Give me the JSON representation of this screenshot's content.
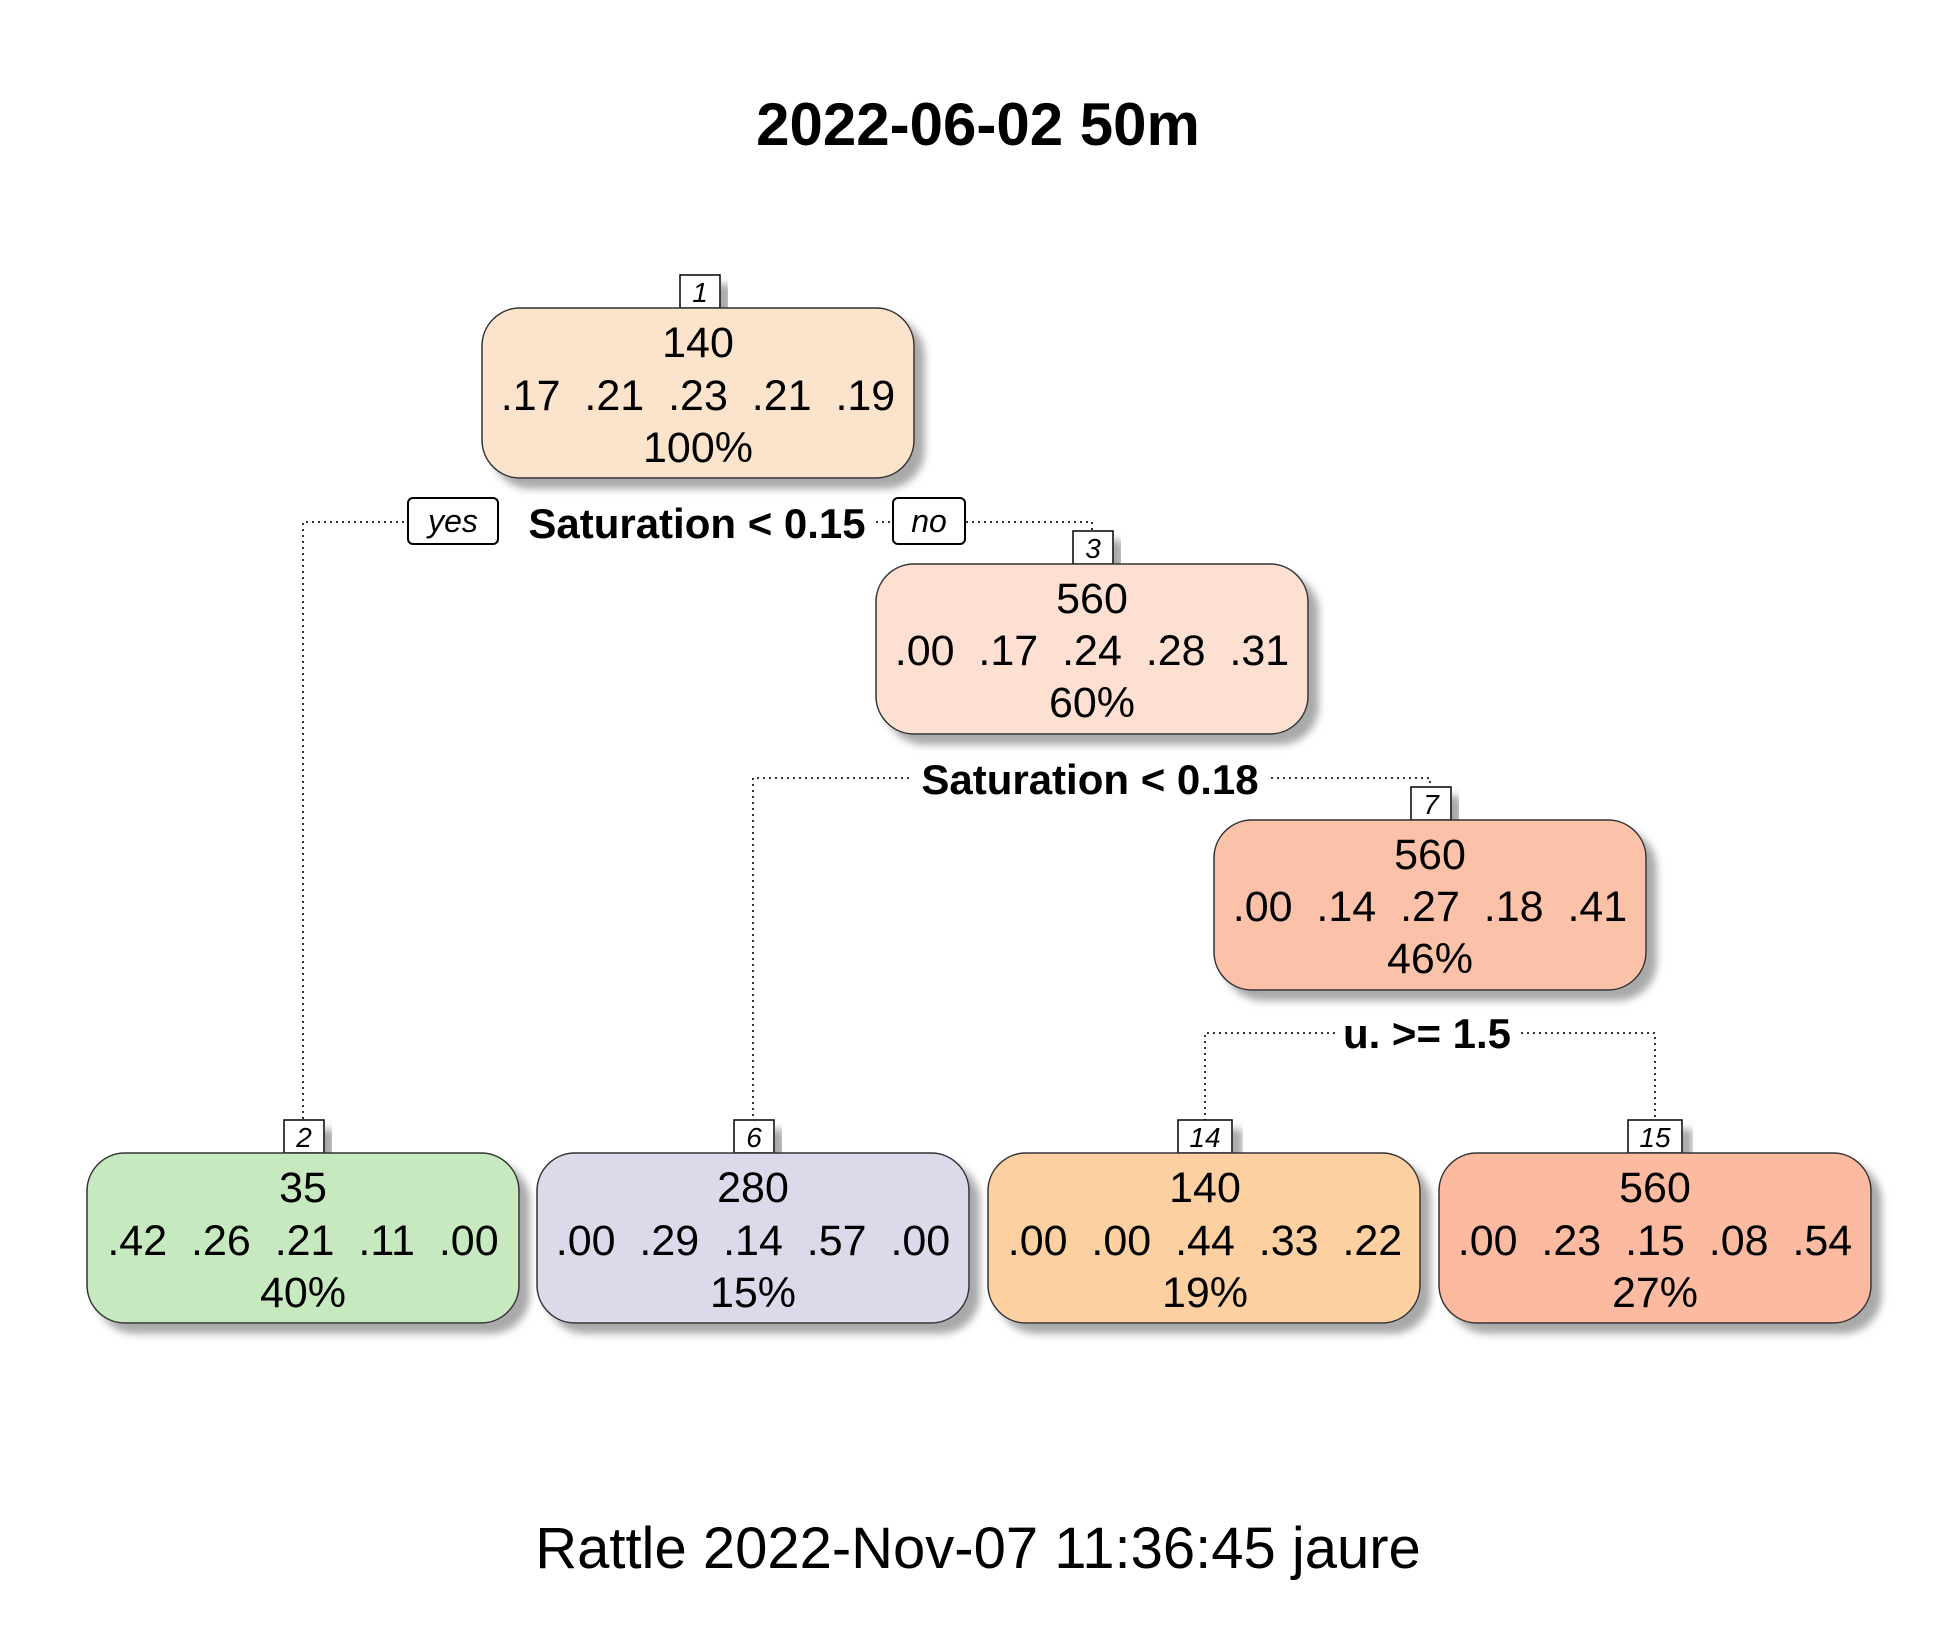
{
  "title": "2022-06-02 50m",
  "footer": "Rattle 2022-Nov-07 11:36:45 jaure",
  "branch_labels": {
    "yes": "yes",
    "no": "no"
  },
  "splits": [
    {
      "label": "Saturation < 0.15",
      "node": "1"
    },
    {
      "label": "Saturation < 0.18",
      "node": "3"
    },
    {
      "label": "u. >= 1.5",
      "node": "7"
    }
  ],
  "nodes": [
    {
      "id": "1",
      "value": "140",
      "probs": ".17  .21  .23  .21  .19",
      "percent": "100%",
      "color": "#fce4cc"
    },
    {
      "id": "3",
      "value": "560",
      "probs": ".00  .17  .24  .28  .31",
      "percent": "60%",
      "color": "#fde0d2"
    },
    {
      "id": "7",
      "value": "560",
      "probs": ".00  .14  .27  .18  .41",
      "percent": "46%",
      "color": "#fcc2a9"
    },
    {
      "id": "2",
      "value": "35",
      "probs": ".42  .26  .21  .11  .00",
      "percent": "40%",
      "color": "#c7e9c0"
    },
    {
      "id": "6",
      "value": "280",
      "probs": ".00  .29  .14  .57  .00",
      "percent": "15%",
      "color": "#dadaeb"
    },
    {
      "id": "14",
      "value": "140",
      "probs": ".00  .00  .44  .33  .22",
      "percent": "19%",
      "color": "#fdd0a2"
    },
    {
      "id": "15",
      "value": "560",
      "probs": ".00  .23  .15  .08  .54",
      "percent": "27%",
      "color": "#fcbba1"
    }
  ]
}
